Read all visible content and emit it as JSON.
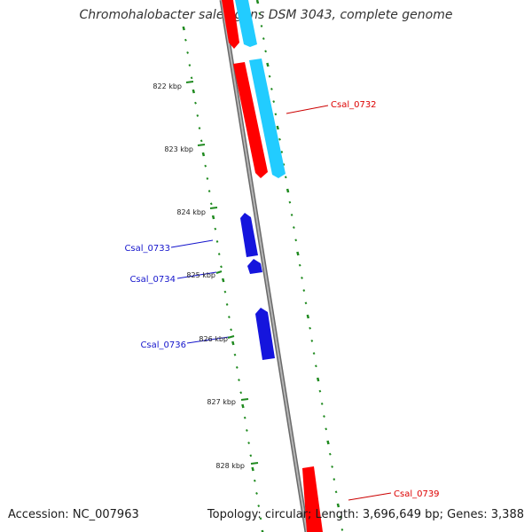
{
  "map": {
    "title": "Chromohalobacter salexigens DSM 3043, complete genome",
    "accession_label": "Accession: NC_007963",
    "summary_label": "Topology: circular; Length: 3,696,649 bp; Genes: 3,388",
    "colors": {
      "backbone": "#8a8a8a",
      "tick": "#1f8a1f",
      "forward_gene": "#ff0000",
      "forward_cds": "#22ccff",
      "reverse_gene": "#1515dd",
      "forward_label": "#dd0000",
      "reverse_label": "#1515cc"
    },
    "ticks": [
      "822 kbp",
      "823 kbp",
      "824 kbp",
      "825 kbp",
      "826 kbp",
      "827 kbp",
      "828 kbp"
    ],
    "labels": {
      "csal_0732": "Csal_0732",
      "csal_0733": "Csal_0733",
      "csal_0734": "Csal_0734",
      "csal_0736": "Csal_0736",
      "csal_0739": "Csal_0739"
    }
  }
}
